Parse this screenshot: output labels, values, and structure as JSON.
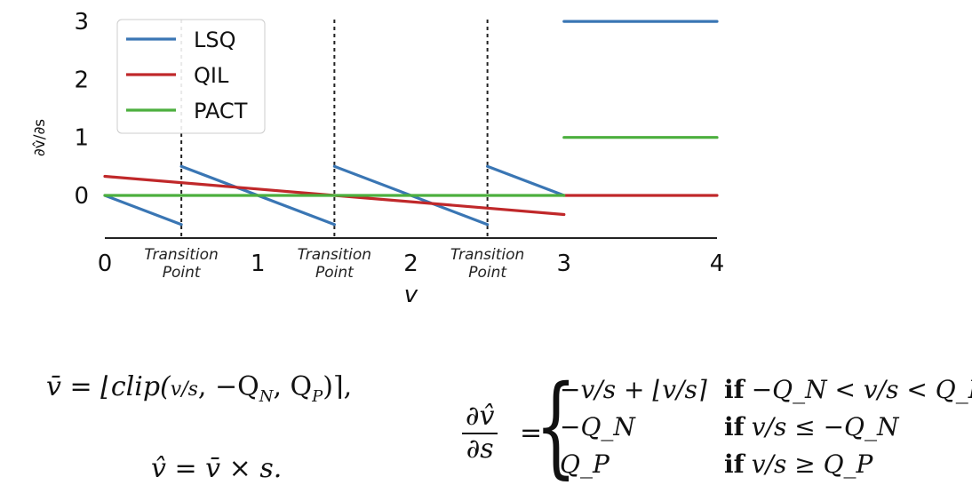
{
  "chart_data": {
    "type": "line",
    "xlabel": "v",
    "ylabel": "∂v̂/∂s",
    "xlim": [
      0,
      4
    ],
    "ylim": [
      -0.75,
      3
    ],
    "xticks": [
      "0",
      "1",
      "2",
      "3",
      "4"
    ],
    "yticks": [
      "0",
      "1",
      "2",
      "3"
    ],
    "grid": false,
    "legend": "top-left",
    "annotations": [
      {
        "label": "Transition Point",
        "x": 0.5
      },
      {
        "label": "Transition Point",
        "x": 1.5
      },
      {
        "label": "Transition Point",
        "x": 2.5
      }
    ],
    "series": [
      {
        "name": "LSQ",
        "color": "#3a76b4",
        "segments": [
          [
            [
              0,
              0
            ],
            [
              0.5,
              -0.5
            ]
          ],
          [
            [
              0.5,
              0.5
            ],
            [
              1.5,
              -0.5
            ]
          ],
          [
            [
              1.5,
              0.5
            ],
            [
              2.5,
              -0.5
            ]
          ],
          [
            [
              2.5,
              0.5
            ],
            [
              3,
              0
            ]
          ],
          [
            [
              3,
              3
            ],
            [
              4,
              3
            ]
          ]
        ]
      },
      {
        "name": "QIL",
        "color": "#c0282a",
        "segments": [
          [
            [
              0,
              0.33
            ],
            [
              1.5,
              0
            ],
            [
              3,
              -0.33
            ]
          ],
          [
            [
              3,
              0
            ],
            [
              4,
              0
            ]
          ]
        ]
      },
      {
        "name": "PACT",
        "color": "#4caf3e",
        "segments": [
          [
            [
              0,
              0
            ],
            [
              3,
              0
            ]
          ],
          [
            [
              3,
              1
            ],
            [
              4,
              1
            ]
          ]
        ]
      }
    ]
  },
  "equations": {
    "vbar_lhs": "v̄ = ⌊clip(",
    "vbar_frac": "v/s",
    "vbar_rest": ", −Q",
    "vbar_sub_n": "N",
    "vbar_mid": ", Q",
    "vbar_sub_p": "P",
    "vbar_end": ")⌉,",
    "vhat": "v̂ = v̄ × s.",
    "deriv_num": "∂v̂",
    "deriv_den": "∂s",
    "deriv_eq": "=",
    "cases": [
      {
        "expr": "−v/s + ⌊v/s⌉",
        "cond_kw": "if",
        "cond": "−Q_N < v/s < Q_P"
      },
      {
        "expr": "−Q_N",
        "cond_kw": "if",
        "cond": "v/s ≤ −Q_N"
      },
      {
        "expr": "Q_P",
        "cond_kw": "if",
        "cond": "v/s ≥ Q_P"
      }
    ]
  }
}
